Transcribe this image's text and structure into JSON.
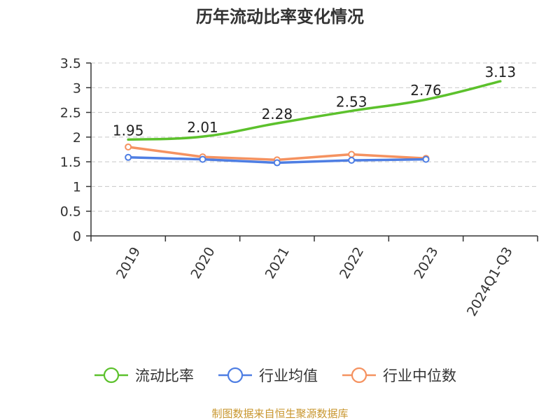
{
  "chart_data": {
    "type": "line",
    "title": "历年流动比率变化情况",
    "categories": [
      "2019",
      "2020",
      "2021",
      "2022",
      "2023",
      "2024Q1-Q3"
    ],
    "ylim": [
      0,
      3.5
    ],
    "yticks": [
      "0",
      "0.5",
      "1",
      "1.5",
      "2",
      "2.5",
      "3",
      "3.5"
    ],
    "grid": true,
    "legend_position": "bottom",
    "series": [
      {
        "name": "流动比率",
        "color": "#5cc12c",
        "values": [
          1.95,
          2.01,
          2.28,
          2.53,
          2.76,
          3.13
        ],
        "labels": [
          "1.95",
          "2.01",
          "2.28",
          "2.53",
          "2.76",
          "3.13"
        ]
      },
      {
        "name": "行业均值",
        "color": "#4e7ee3",
        "values": [
          1.59,
          1.55,
          1.48,
          1.53,
          1.55,
          null
        ]
      },
      {
        "name": "行业中位数",
        "color": "#f59260",
        "values": [
          1.8,
          1.6,
          1.54,
          1.65,
          1.57,
          null
        ]
      }
    ],
    "source": "制图数据来自恒生聚源数据库"
  }
}
